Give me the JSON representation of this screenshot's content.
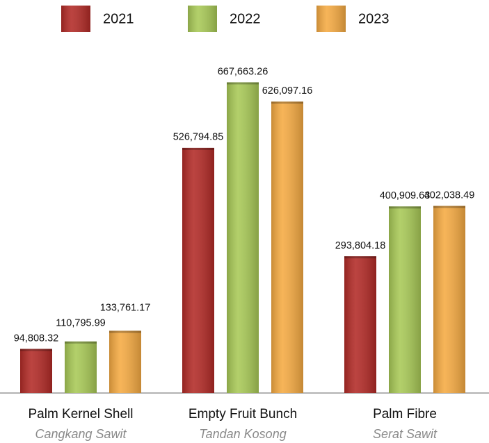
{
  "chart_data": {
    "type": "bar",
    "categories": [
      "Palm Kernel Shell",
      "Empty Fruit Bunch",
      "Palm Fibre"
    ],
    "category_subtitles": [
      "Cangkang Sawit",
      "Tandan Kosong",
      "Serat Sawit"
    ],
    "series": [
      {
        "name": "2021",
        "color": "#b22a26",
        "values": [
          94808.32,
          526794.85,
          293804.18
        ],
        "value_labels": [
          "94,808.32",
          "526,794.85",
          "293,804.18"
        ]
      },
      {
        "name": "2022",
        "color": "#a8c956",
        "values": [
          110795.99,
          667663.26,
          400909.63
        ],
        "value_labels": [
          "110,795.99",
          "667,663.26",
          "400,909.63"
        ]
      },
      {
        "name": "2023",
        "color": "#f5aa42",
        "values": [
          133761.17,
          626097.16,
          402038.49
        ],
        "value_labels": [
          "133,761.17",
          "626,097.16",
          "402,038.49"
        ]
      }
    ],
    "ylim": [
      0,
      740000
    ]
  }
}
